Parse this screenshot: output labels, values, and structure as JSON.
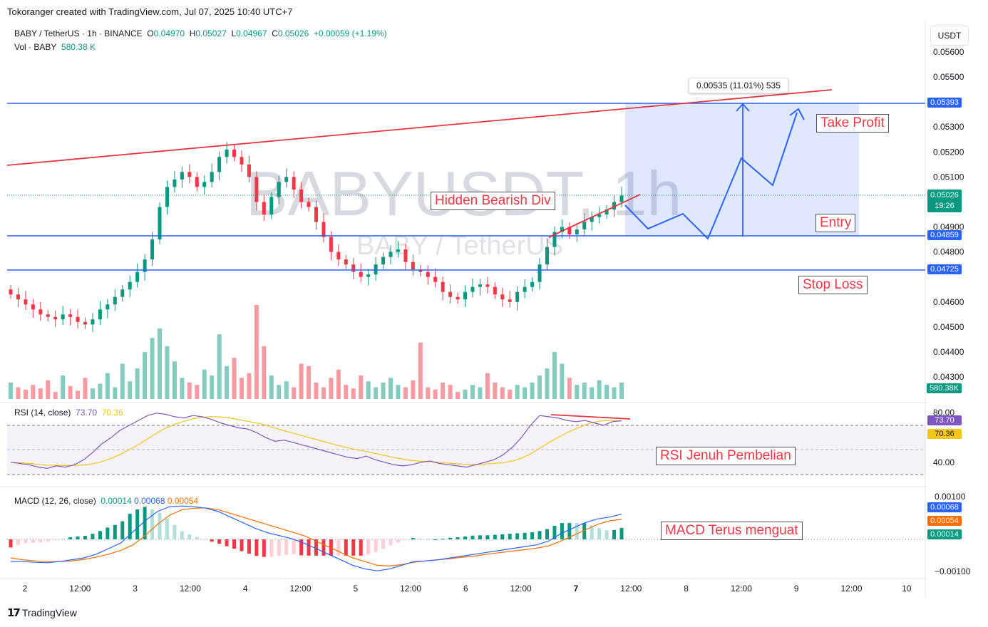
{
  "credit": "Tokoranger created with TradingView.com, Jul 07, 2025 10:40 UTC+7",
  "symbol": {
    "title": "BABY / TetherUS · 1h · BINANCE",
    "o_label": "O",
    "o": "0.04970",
    "h_label": "H",
    "h": "0.05027",
    "l_label": "L",
    "l": "0.04967",
    "c_label": "C",
    "c": "0.05026",
    "change": "+0.00059 (+1.19%)"
  },
  "vol": {
    "label": "Vol · BABY",
    "value": "580.38 K",
    "badge": "580.38K"
  },
  "watermark": {
    "big": "BABYUSDT, 1h",
    "small": "BABY / TetherUS"
  },
  "currency": "USDT",
  "price_axis": [
    "0.05600",
    "0.05500",
    "0.05300",
    "0.05200",
    "0.05100",
    "0.04900",
    "0.04800",
    "0.04600",
    "0.04500",
    "0.04400",
    "0.04300"
  ],
  "price_badges": {
    "tp": "0.05393",
    "last": "0.05026",
    "countdown": "19:26",
    "entry": "0.04859",
    "sl": "0.04725"
  },
  "measure_label": "0.00535 (11.01%) 535",
  "annotations": {
    "take_profit": "Take Profit",
    "entry": "Entry",
    "stop_loss": "Stop Loss",
    "hidden_div": "Hidden Bearish Div",
    "rsi_note": "RSI Jenuh Pembelian",
    "macd_note": "MACD Terus menguat"
  },
  "rsi": {
    "label": "RSI (14, close)",
    "value": "73.70",
    "ma": "70.36",
    "axis": [
      "80.00",
      "40.00"
    ]
  },
  "macd": {
    "label": "MACD (12, 26, close)",
    "hist": "0.00014",
    "macd": "0.00068",
    "signal": "0.00054",
    "axis": [
      "0.00100",
      "−0.00100"
    ]
  },
  "time_axis": [
    "2",
    "12:00",
    "3",
    "12:00",
    "4",
    "12:00",
    "5",
    "12:00",
    "6",
    "12:00",
    "7",
    "12:00",
    "8",
    "12:00",
    "9",
    "12:00",
    "10"
  ],
  "footer": "TradingView",
  "colors": {
    "up": "#089981",
    "down": "#f23645",
    "blue": "#2962ff",
    "trend": "#e8343f",
    "rsi": "#7e57c2",
    "rsi_ma": "#f5c518",
    "macd": "#2962ff",
    "signal": "#ff6d00"
  },
  "chart_data": {
    "type": "candlestick",
    "title": "BABY / TetherUS · 1h · BINANCE",
    "price_levels": {
      "take_profit": 0.05393,
      "entry": 0.04859,
      "stop_loss": 0.04725,
      "last": 0.05026
    },
    "close_path": [
      0.0463,
      0.0461,
      0.0459,
      0.0457,
      0.0455,
      0.0454,
      0.0453,
      0.0455,
      0.0454,
      0.0452,
      0.0451,
      0.0453,
      0.0457,
      0.0459,
      0.0462,
      0.0465,
      0.0468,
      0.0472,
      0.0477,
      0.0485,
      0.0498,
      0.0506,
      0.0509,
      0.0512,
      0.051,
      0.0506,
      0.0508,
      0.0512,
      0.0518,
      0.0521,
      0.0518,
      0.0515,
      0.051,
      0.05,
      0.0495,
      0.0502,
      0.0508,
      0.051,
      0.0505,
      0.05,
      0.0498,
      0.0492,
      0.0486,
      0.048,
      0.0477,
      0.0475,
      0.0472,
      0.047,
      0.0471,
      0.0475,
      0.0478,
      0.048,
      0.0481,
      0.0476,
      0.0473,
      0.0472,
      0.047,
      0.0468,
      0.0464,
      0.0462,
      0.0461,
      0.0464,
      0.0466,
      0.0467,
      0.0466,
      0.0463,
      0.0461,
      0.046,
      0.0464,
      0.0466,
      0.0468,
      0.0475,
      0.0482,
      0.0488,
      0.049,
      0.0487,
      0.0489,
      0.0492,
      0.0494,
      0.0495,
      0.0497,
      0.05,
      0.05026
    ],
    "volume_path": [
      14,
      10,
      8,
      12,
      9,
      16,
      6,
      20,
      11,
      7,
      18,
      9,
      13,
      22,
      10,
      30,
      15,
      26,
      40,
      52,
      60,
      45,
      32,
      18,
      14,
      12,
      25,
      20,
      55,
      28,
      35,
      18,
      22,
      80,
      45,
      20,
      12,
      15,
      10,
      30,
      28,
      14,
      10,
      18,
      25,
      12,
      9,
      20,
      15,
      10,
      14,
      18,
      12,
      10,
      16,
      48,
      10,
      8,
      14,
      12,
      6,
      8,
      12,
      10,
      22,
      14,
      10,
      8,
      12,
      10,
      14,
      20,
      26,
      40,
      30,
      18,
      12,
      14,
      10,
      16,
      12,
      10,
      14
    ],
    "rsi_path": [
      40,
      39,
      38,
      36,
      35,
      37,
      36,
      38,
      42,
      48,
      55,
      60,
      66,
      70,
      74,
      78,
      80,
      79,
      77,
      76,
      78,
      77,
      75,
      72,
      70,
      68,
      67,
      64,
      60,
      57,
      58,
      56,
      54,
      52,
      50,
      48,
      46,
      44,
      43,
      45,
      42,
      40,
      38,
      37,
      38,
      40,
      41,
      39,
      38,
      37,
      36,
      38,
      40,
      42,
      46,
      52,
      60,
      70,
      78,
      77,
      76,
      74,
      73,
      74,
      72,
      70,
      73,
      73.7
    ],
    "macd_path": [
      -0.0006,
      -0.0006,
      -0.00062,
      -0.00063,
      -0.0006,
      -0.00055,
      -0.0005,
      -0.0004,
      -0.00025,
      -0.0001,
      0.0002,
      0.0005,
      0.00075,
      0.00088,
      0.0009,
      0.00088,
      0.00084,
      0.00075,
      0.0006,
      0.00045,
      0.0003,
      0.00018,
      0.0001,
      2e-05,
      -0.0001,
      -0.00025,
      -0.0004,
      -0.00055,
      -0.0007,
      -0.0008,
      -0.00085,
      -0.0008,
      -0.0007,
      -0.0006,
      -0.00058,
      -0.00055,
      -0.0005,
      -0.00045,
      -0.0004,
      -0.00035,
      -0.0003,
      -0.00025,
      -0.0002,
      -0.00015,
      -5e-05,
      0.00015,
      0.0003,
      0.00045,
      0.00055,
      0.0006,
      0.00068
    ],
    "signal_path": [
      -0.0005,
      -0.00055,
      -0.00058,
      -0.0006,
      -0.0006,
      -0.00058,
      -0.00054,
      -0.00048,
      -0.0004,
      -0.0003,
      -0.00015,
      0.0001,
      0.0004,
      0.00065,
      0.0008,
      0.00084,
      0.00085,
      0.0008,
      0.0007,
      0.0006,
      0.0005,
      0.0004,
      0.0003,
      0.0002,
      0.0001,
      -5e-05,
      -0.0002,
      -0.00035,
      -0.0005,
      -0.0006,
      -0.0007,
      -0.00072,
      -0.00068,
      -0.00062,
      -0.00058,
      -0.00055,
      -0.00052,
      -0.00048,
      -0.00045,
      -0.0004,
      -0.00036,
      -0.00032,
      -0.00028,
      -0.00024,
      -0.00018,
      -5e-05,
      0.0001,
      0.00025,
      0.0004,
      0.0005,
      0.00054
    ]
  }
}
